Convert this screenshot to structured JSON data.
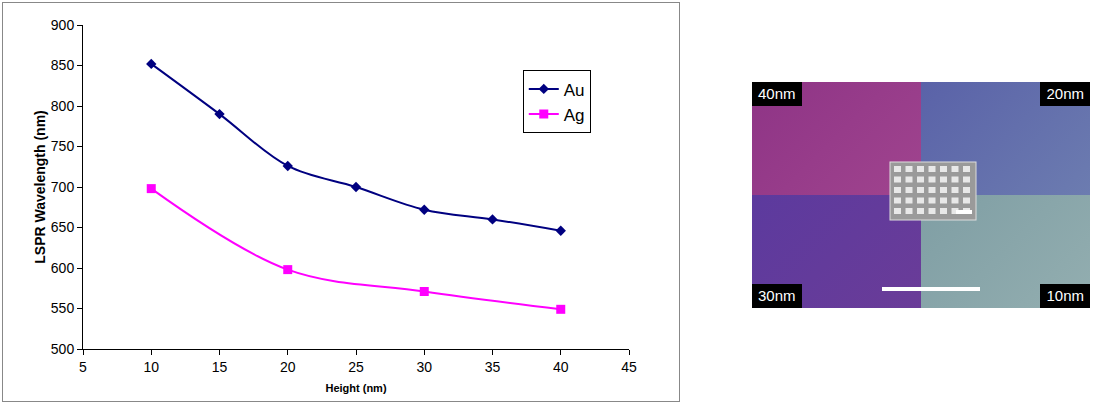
{
  "chart_data": {
    "type": "line",
    "x_label": "Height (nm)",
    "y_label": "LSPR Wavelength (nm)",
    "xlim": [
      5,
      45
    ],
    "xticks": [
      5,
      10,
      15,
      20,
      25,
      30,
      35,
      40,
      45
    ],
    "ylim": [
      500,
      900
    ],
    "yticks": [
      500,
      550,
      600,
      650,
      700,
      750,
      800,
      850,
      900
    ],
    "grid": false,
    "legend": "upper right",
    "series": [
      {
        "name": "Au",
        "color": "#000080",
        "marker": "diamond",
        "line_style": "smooth",
        "x": [
          10,
          15,
          20,
          25,
          30,
          35,
          40
        ],
        "values": [
          852,
          790,
          726,
          700,
          672,
          660,
          646
        ]
      },
      {
        "name": "Ag",
        "color": "#ff00ff",
        "marker": "square",
        "line_style": "smooth",
        "x": [
          10,
          20,
          30,
          40
        ],
        "values": [
          698,
          598,
          571,
          549
        ]
      }
    ]
  },
  "image_panel": {
    "corner_labels": {
      "top_left": "40nm",
      "top_right": "20nm",
      "bottom_left": "30nm",
      "bottom_right": "10nm"
    }
  }
}
